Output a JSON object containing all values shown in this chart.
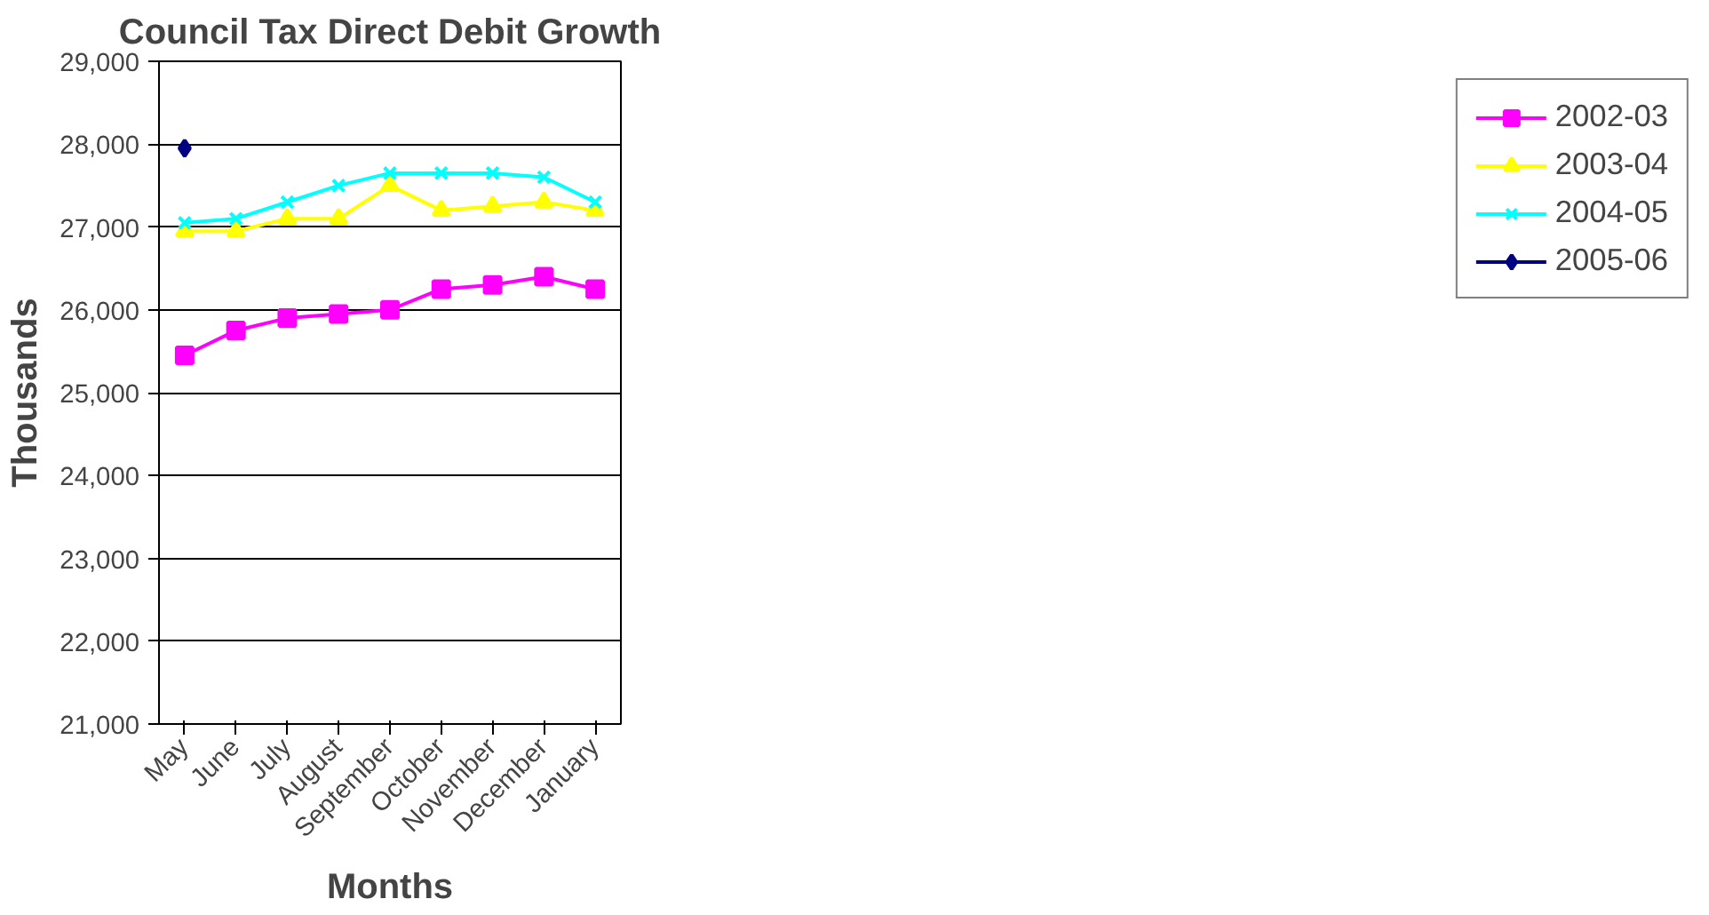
{
  "chart_data": {
    "type": "line",
    "title": "Council Tax Direct Debit Growth",
    "xlabel": "Months",
    "ylabel": "Thousands",
    "categories": [
      "May",
      "June",
      "July",
      "August",
      "September",
      "October",
      "November",
      "December",
      "January"
    ],
    "series": [
      {
        "name": "2002-03",
        "color": "#ff00ff",
        "marker": "square",
        "values": [
          25450,
          25750,
          25900,
          25950,
          26000,
          26250,
          26300,
          26400,
          26250
        ]
      },
      {
        "name": "2003-04",
        "color": "#ffff00",
        "marker": "triangle",
        "values": [
          26950,
          26950,
          27100,
          27100,
          27500,
          27200,
          27250,
          27300,
          27200
        ]
      },
      {
        "name": "2004-05",
        "color": "#00ffff",
        "marker": "cross",
        "values": [
          27050,
          27100,
          27300,
          27500,
          27650,
          27650,
          27650,
          27600,
          27300
        ]
      },
      {
        "name": "2005-06",
        "color": "#000080",
        "marker": "diamond",
        "values": [
          27950,
          null,
          null,
          null,
          null,
          null,
          null,
          null,
          null
        ]
      }
    ],
    "ylim": [
      21000,
      29000
    ],
    "yticks": [
      {
        "value": 21000,
        "label": "21,000"
      },
      {
        "value": 22000,
        "label": "22,000"
      },
      {
        "value": 23000,
        "label": "23,000"
      },
      {
        "value": 24000,
        "label": "24,000"
      },
      {
        "value": 25000,
        "label": "25,000"
      },
      {
        "value": 26000,
        "label": "26,000"
      },
      {
        "value": 27000,
        "label": "27,000"
      },
      {
        "value": 28000,
        "label": "28,000"
      },
      {
        "value": 29000,
        "label": "29,000"
      }
    ],
    "grid": "y",
    "legend": "right",
    "line_style": "solid"
  }
}
